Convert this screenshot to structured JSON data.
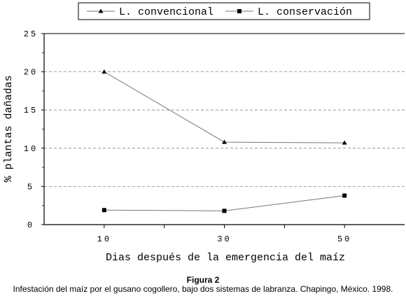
{
  "chart_data": {
    "type": "line",
    "x": [
      10,
      30,
      50
    ],
    "series": [
      {
        "name": "L. convencional",
        "values": [
          20,
          10.8,
          10.7
        ],
        "marker": "triangle"
      },
      {
        "name": "L. conservación",
        "values": [
          1.9,
          1.8,
          3.8
        ],
        "marker": "square"
      }
    ],
    "xlabel": "Dias después de la emergencia del maíz",
    "ylabel": "% plantas dañadas",
    "x_ticks": [
      10,
      30,
      50
    ],
    "y_ticks": [
      0,
      5,
      10,
      15,
      20,
      25
    ],
    "xlim": [
      0,
      60
    ],
    "ylim": [
      0,
      25
    ],
    "grid": "horizontal dashed",
    "legend_position": "top-center"
  },
  "caption": {
    "label": "Figura 2",
    "text": "Infestación del maíz por el  gusano cogollero, bajo dos sistemas de  labranza. Chapingo, México. 1998."
  },
  "colors": {
    "line": "#777777",
    "marker": "#000000",
    "grid": "#888888",
    "axis": "#000000"
  }
}
